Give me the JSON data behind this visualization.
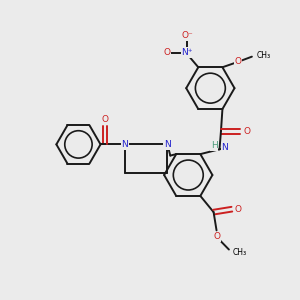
{
  "background_color": "#ebebeb",
  "fig_size": [
    3.0,
    3.0
  ],
  "dpi": 100,
  "bond_color": "#1a1a1a",
  "bond_width": 1.4,
  "N_color": "#2020cc",
  "O_color": "#cc2020",
  "H_color": "#4a9a7a",
  "xlim": [
    0,
    10
  ],
  "ylim": [
    0,
    10
  ]
}
